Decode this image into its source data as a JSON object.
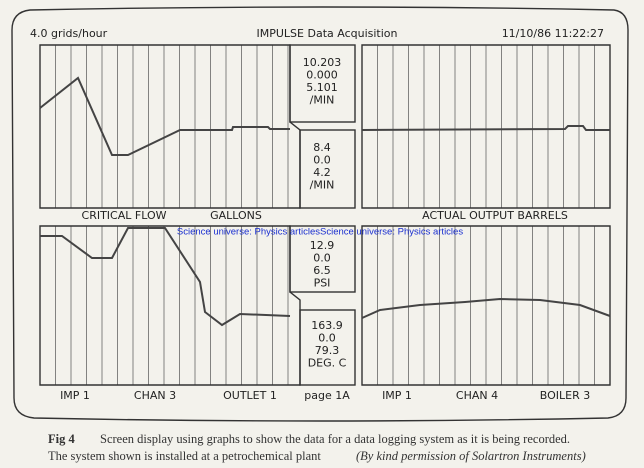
{
  "header": {
    "left": "4.0 grids/hour",
    "title": "IMPULSE Data Acquisition",
    "timestamp": "11/10/86 11:22:27"
  },
  "readouts": [
    {
      "lines": [
        "10.203",
        "0.000",
        "5.101",
        "/MIN"
      ]
    },
    {
      "lines": [
        "8.4",
        "0.0",
        "4.2",
        "/MIN"
      ]
    },
    {
      "lines": [
        "12.9",
        "0.0",
        "6.5",
        "PSI"
      ]
    },
    {
      "lines": [
        "163.9",
        "0.0",
        "79.3",
        "DEG. C"
      ]
    }
  ],
  "middle_labels": [
    "CRITICAL FLOW",
    "GALLONS",
    "ACTUAL OUTPUT BARRELS"
  ],
  "bottom_labels": [
    "IMP 1",
    "CHAN 3",
    "OUTLET 1",
    "page 1A",
    "IMP 1",
    "CHAN 4",
    "BOILER 3"
  ],
  "watermark": "Science universe: Physics articlesScience universe: Physics articles",
  "caption": {
    "label": "Fig 4",
    "line1": "Screen display using graphs to show the data for a data logging system as it is being recorded.",
    "line2": "The system shown is installed at a petrochemical plant",
    "credit": "(By kind permission of Solartron Instruments)"
  }
}
